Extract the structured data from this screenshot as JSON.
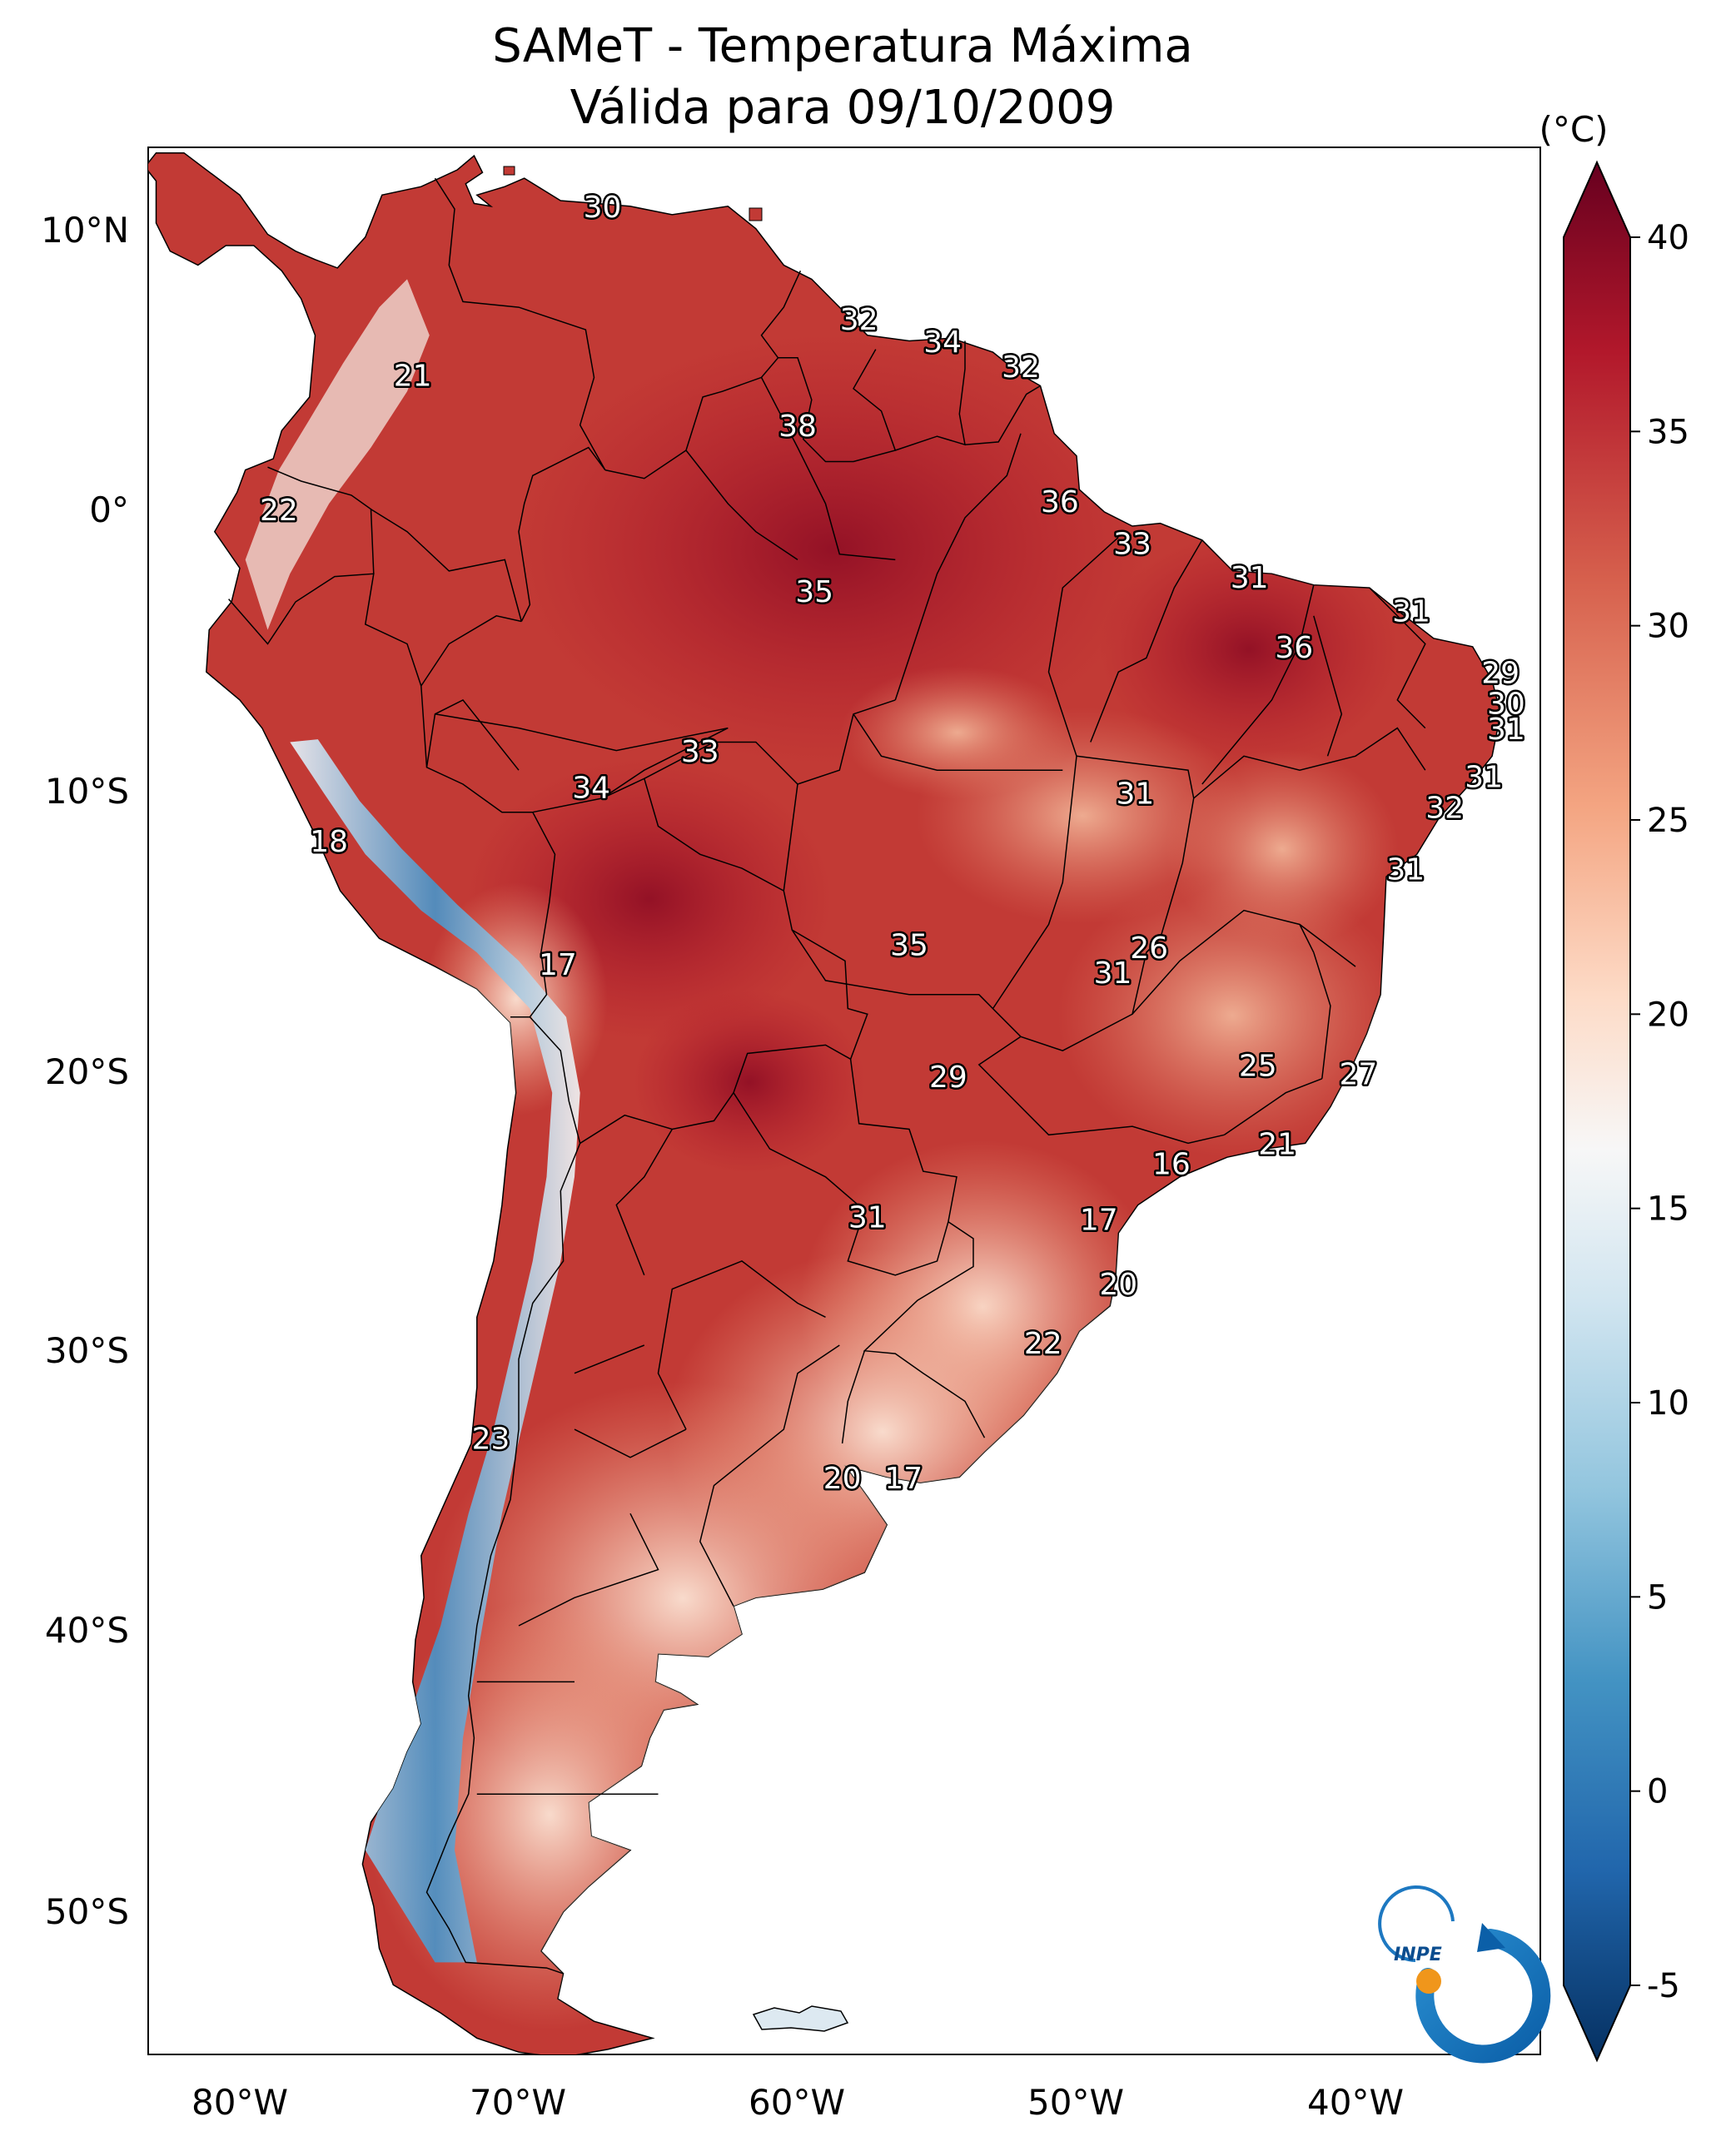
{
  "title_line1": "SAMeT - Temperatura Máxima",
  "title_line2": "Válida para 09/10/2009",
  "colorbar": {
    "unit": "(°C)",
    "ticks": [
      "40",
      "35",
      "30",
      "25",
      "20",
      "15",
      "10",
      "5",
      "0",
      "-5"
    ],
    "range": [
      -5,
      40
    ],
    "colors": {
      "darkest_red": "#67001f",
      "red": "#b2182b",
      "light_red": "#d6604d",
      "salmon": "#f4a582",
      "pale": "#fddbc7",
      "white": "#f7f7f7",
      "pale_blue": "#d1e5f0",
      "light_blue": "#92c5de",
      "blue": "#4393c3",
      "dark_blue": "#2166ac",
      "darkest_blue": "#053061"
    }
  },
  "axes": {
    "lat_labels": [
      "10°N",
      "0°",
      "10°S",
      "20°S",
      "30°S",
      "40°S",
      "50°S"
    ],
    "lon_labels": [
      "80°W",
      "70°W",
      "60°W",
      "50°W",
      "40°W"
    ]
  },
  "logo": {
    "text": "INPE",
    "icon": "inpe-logo-icon"
  },
  "station_labels": [
    {
      "text": "30",
      "lon": -67,
      "lat": 10.5
    },
    {
      "text": "32",
      "lon": -57.8,
      "lat": 6.5
    },
    {
      "text": "34",
      "lon": -54.8,
      "lat": 5.7
    },
    {
      "text": "32",
      "lon": -52,
      "lat": 4.8
    },
    {
      "text": "21",
      "lon": -73.8,
      "lat": 4.5
    },
    {
      "text": "38",
      "lon": -60,
      "lat": 2.7
    },
    {
      "text": "36",
      "lon": -50.6,
      "lat": 0
    },
    {
      "text": "22",
      "lon": -78.6,
      "lat": -0.3
    },
    {
      "text": "33",
      "lon": -48,
      "lat": -1.5
    },
    {
      "text": "35",
      "lon": -59.4,
      "lat": -3.2
    },
    {
      "text": "31",
      "lon": -43.8,
      "lat": -2.7
    },
    {
      "text": "31",
      "lon": -38,
      "lat": -3.9
    },
    {
      "text": "36",
      "lon": -42.2,
      "lat": -5.2
    },
    {
      "text": "29",
      "lon": -34.8,
      "lat": -6.1
    },
    {
      "text": "30",
      "lon": -34.6,
      "lat": -7.2
    },
    {
      "text": "31",
      "lon": -34.6,
      "lat": -8.1
    },
    {
      "text": "33",
      "lon": -63.5,
      "lat": -8.9
    },
    {
      "text": "34",
      "lon": -67.4,
      "lat": -10.2
    },
    {
      "text": "31",
      "lon": -47.9,
      "lat": -10.4
    },
    {
      "text": "31",
      "lon": -35.4,
      "lat": -9.8
    },
    {
      "text": "32",
      "lon": -36.8,
      "lat": -10.9
    },
    {
      "text": "18",
      "lon": -76.8,
      "lat": -12.1
    },
    {
      "text": "31",
      "lon": -38.2,
      "lat": -13.1
    },
    {
      "text": "35",
      "lon": -56,
      "lat": -15.8
    },
    {
      "text": "26",
      "lon": -47.4,
      "lat": -15.9
    },
    {
      "text": "17",
      "lon": -68.6,
      "lat": -16.5
    },
    {
      "text": "31",
      "lon": -48.7,
      "lat": -16.8
    },
    {
      "text": "25",
      "lon": -43.5,
      "lat": -20.1
    },
    {
      "text": "27",
      "lon": -39.9,
      "lat": -20.4
    },
    {
      "text": "29",
      "lon": -54.6,
      "lat": -20.5
    },
    {
      "text": "21",
      "lon": -42.8,
      "lat": -22.9
    },
    {
      "text": "16",
      "lon": -46.6,
      "lat": -23.6
    },
    {
      "text": "17",
      "lon": -49.2,
      "lat": -25.6
    },
    {
      "text": "31",
      "lon": -57.5,
      "lat": -25.5
    },
    {
      "text": "20",
      "lon": -48.5,
      "lat": -27.9
    },
    {
      "text": "22",
      "lon": -51.2,
      "lat": -30.0
    },
    {
      "text": "23",
      "lon": -71.0,
      "lat": -33.4
    },
    {
      "text": "20",
      "lon": -58.4,
      "lat": -34.8
    },
    {
      "text": "17",
      "lon": -56.2,
      "lat": -34.8
    }
  ]
}
